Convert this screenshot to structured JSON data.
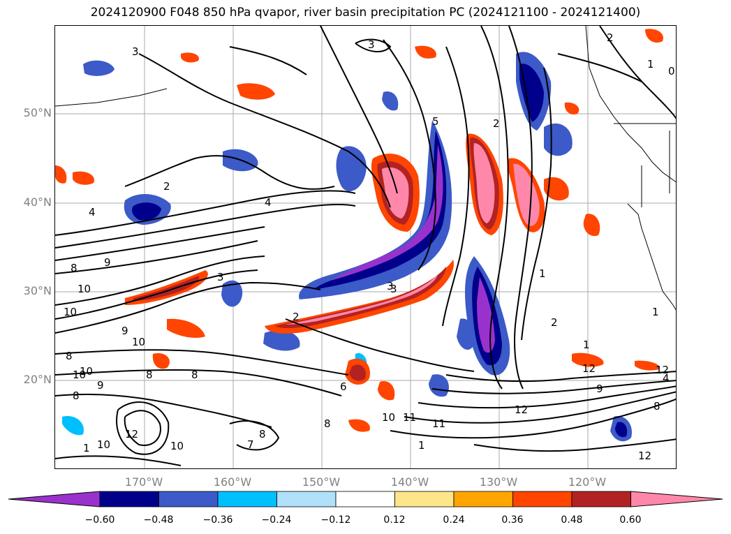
{
  "title": "2024120900 F048 850 hPa qvapor, river basin precipitation PC (2024121100 - 2024121400)",
  "latitude_labels": [
    "50°N",
    "40°N",
    "30°N",
    "20°N"
  ],
  "longitude_labels": [
    "170°W",
    "160°W",
    "150°W",
    "140°W",
    "130°W",
    "120°W"
  ],
  "colorbar": {
    "colors": [
      "#9932cc",
      "#00008b",
      "#3c5ac8",
      "#00bfff",
      "#b0e0fa",
      "#ffffff",
      "#fde68a",
      "#ffa500",
      "#ff4500",
      "#b22222",
      "#ff88aa"
    ],
    "tick_labels": [
      "−0.60",
      "−0.48",
      "−0.36",
      "−0.24",
      "−0.12",
      "0.12",
      "0.24",
      "0.36",
      "0.48",
      "0.60"
    ],
    "extend": "both"
  },
  "contour_labels": [
    "3",
    "3",
    "2",
    "4",
    "4",
    "8",
    "9",
    "10",
    "3",
    "2",
    "3",
    "5",
    "9",
    "10",
    "10",
    "8",
    "8",
    "8",
    "10",
    "9",
    "10",
    "12",
    "11",
    "10",
    "7",
    "8",
    "6",
    "8",
    "1",
    "2",
    "1",
    "12",
    "9",
    "12",
    "8",
    "12",
    "0",
    "2",
    "1",
    "4",
    "2",
    "1",
    "10",
    "1",
    "1",
    "11",
    "12",
    "8",
    "10",
    "3"
  ]
}
